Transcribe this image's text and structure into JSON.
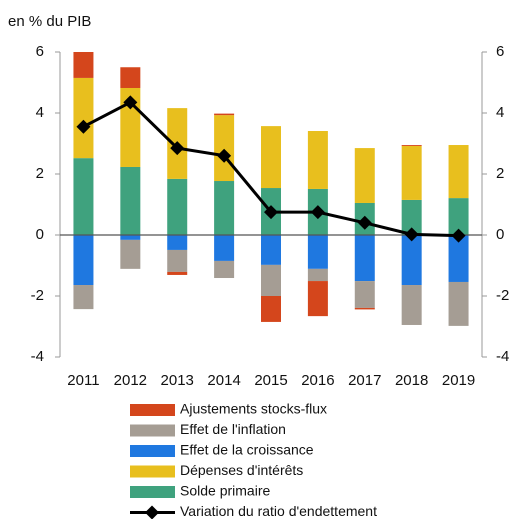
{
  "chart_data": {
    "type": "bar",
    "y_label": "en % du PIB",
    "categories": [
      "2011",
      "2012",
      "2013",
      "2014",
      "2015",
      "2016",
      "2017",
      "2018",
      "2019"
    ],
    "series": [
      {
        "name": "Ajustements stocks-flux",
        "color": "#d4461c",
        "values": [
          0.85,
          0.68,
          -0.1,
          0.05,
          -0.85,
          -1.15,
          -0.05,
          0.03,
          0
        ]
      },
      {
        "name": "Effet de l'inflation",
        "color": "#a59d94",
        "values": [
          -0.79,
          -0.95,
          -0.72,
          -0.56,
          -1.02,
          -0.4,
          -0.88,
          -1.31,
          -1.44
        ]
      },
      {
        "name": "Effet de la croissance",
        "color": "#1f78e0",
        "values": [
          -1.64,
          -0.16,
          -0.49,
          -0.85,
          -0.98,
          -1.11,
          -1.51,
          -1.64,
          -1.54
        ]
      },
      {
        "name": "Dépenses d'intérêts",
        "color": "#e8bf1e",
        "values": [
          2.63,
          2.59,
          2.32,
          2.16,
          2.03,
          1.9,
          1.8,
          1.77,
          1.74
        ]
      },
      {
        "name": "Solde primaire",
        "color": "#3fa27e",
        "values": [
          2.52,
          2.23,
          1.84,
          1.77,
          1.54,
          1.51,
          1.05,
          1.15,
          1.21
        ]
      },
      {
        "name": "Variation du ratio d'endettement",
        "type": "line",
        "color": "#000000",
        "values": [
          3.55,
          4.35,
          2.85,
          2.6,
          0.75,
          0.75,
          0.4,
          0.02,
          -0.02
        ]
      }
    ],
    "stacked": true,
    "ylim": [
      -4,
      6
    ],
    "yticks": [
      -4,
      -2,
      0,
      2,
      4,
      6
    ],
    "y2lim": [
      -4,
      6
    ],
    "y2ticks": [
      -4,
      -2,
      0,
      2,
      4,
      6
    ]
  }
}
